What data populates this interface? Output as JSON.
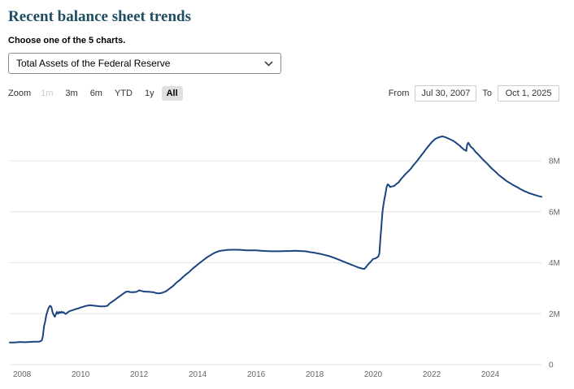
{
  "page": {
    "title": "Recent balance sheet trends",
    "subtitle": "Choose one of the 5 charts."
  },
  "colors": {
    "title": "#1f4e63",
    "line": "#1a4480",
    "grid": "#e6e6e6",
    "selected_button_bg": "#e0e0e0"
  },
  "chart_select": {
    "selected_option": "Total Assets of the Federal Reserve"
  },
  "toolbar": {
    "zoom_label": "Zoom",
    "buttons": [
      {
        "label": "1m",
        "state": "disabled"
      },
      {
        "label": "3m",
        "state": "normal"
      },
      {
        "label": "6m",
        "state": "normal"
      },
      {
        "label": "YTD",
        "state": "normal"
      },
      {
        "label": "1y",
        "state": "normal"
      },
      {
        "label": "All",
        "state": "selected"
      }
    ],
    "from_label": "From",
    "from_value": "Jul 30, 2007",
    "to_label": "To",
    "to_value": "Oct 1, 2025"
  },
  "chart_data": {
    "type": "line",
    "title": "",
    "legend": "none",
    "grid": "horizontal",
    "xlim": [
      2007.58,
      2025.75
    ],
    "ylim": [
      0,
      9.5
    ],
    "xticks": {
      "values": [
        2008,
        2010,
        2012,
        2014,
        2016,
        2018,
        2020,
        2022,
        2024
      ],
      "labels": [
        "2008",
        "2010",
        "2012",
        "2014",
        "2016",
        "2018",
        "2020",
        "2022",
        "2024"
      ]
    },
    "yticks": {
      "values": [
        0,
        2,
        4,
        6,
        8
      ],
      "labels": [
        "0",
        "2M",
        "4M",
        "6M",
        "8M"
      ]
    },
    "series": [
      {
        "name": "Total Assets of the Federal Reserve",
        "color": "#1a4480",
        "points": [
          [
            2007.58,
            0.87
          ],
          [
            2007.75,
            0.87
          ],
          [
            2007.92,
            0.89
          ],
          [
            2008.08,
            0.88
          ],
          [
            2008.25,
            0.89
          ],
          [
            2008.42,
            0.9
          ],
          [
            2008.58,
            0.9
          ],
          [
            2008.67,
            0.94
          ],
          [
            2008.71,
            1.1
          ],
          [
            2008.73,
            1.3
          ],
          [
            2008.75,
            1.5
          ],
          [
            2008.79,
            1.7
          ],
          [
            2008.83,
            1.95
          ],
          [
            2008.88,
            2.14
          ],
          [
            2008.92,
            2.25
          ],
          [
            2008.96,
            2.31
          ],
          [
            2009.0,
            2.27
          ],
          [
            2009.02,
            2.18
          ],
          [
            2009.04,
            2.06
          ],
          [
            2009.08,
            1.95
          ],
          [
            2009.12,
            1.88
          ],
          [
            2009.15,
            1.96
          ],
          [
            2009.19,
            2.07
          ],
          [
            2009.23,
            2.0
          ],
          [
            2009.27,
            2.07
          ],
          [
            2009.31,
            2.03
          ],
          [
            2009.35,
            2.08
          ],
          [
            2009.38,
            2.04
          ],
          [
            2009.42,
            2.06
          ],
          [
            2009.46,
            2.01
          ],
          [
            2009.5,
            1.99
          ],
          [
            2009.54,
            2.03
          ],
          [
            2009.58,
            2.07
          ],
          [
            2009.65,
            2.11
          ],
          [
            2009.73,
            2.14
          ],
          [
            2009.81,
            2.17
          ],
          [
            2009.9,
            2.2
          ],
          [
            2010.0,
            2.24
          ],
          [
            2010.08,
            2.27
          ],
          [
            2010.17,
            2.3
          ],
          [
            2010.25,
            2.32
          ],
          [
            2010.33,
            2.33
          ],
          [
            2010.42,
            2.32
          ],
          [
            2010.5,
            2.31
          ],
          [
            2010.58,
            2.3
          ],
          [
            2010.67,
            2.29
          ],
          [
            2010.75,
            2.29
          ],
          [
            2010.83,
            2.29
          ],
          [
            2010.92,
            2.31
          ],
          [
            2011.0,
            2.41
          ],
          [
            2011.08,
            2.47
          ],
          [
            2011.17,
            2.54
          ],
          [
            2011.25,
            2.61
          ],
          [
            2011.33,
            2.68
          ],
          [
            2011.42,
            2.75
          ],
          [
            2011.5,
            2.82
          ],
          [
            2011.56,
            2.86
          ],
          [
            2011.62,
            2.87
          ],
          [
            2011.69,
            2.85
          ],
          [
            2011.77,
            2.84
          ],
          [
            2011.85,
            2.85
          ],
          [
            2011.92,
            2.86
          ],
          [
            2012.0,
            2.92
          ],
          [
            2012.08,
            2.89
          ],
          [
            2012.17,
            2.87
          ],
          [
            2012.25,
            2.86
          ],
          [
            2012.33,
            2.86
          ],
          [
            2012.42,
            2.85
          ],
          [
            2012.5,
            2.84
          ],
          [
            2012.58,
            2.81
          ],
          [
            2012.67,
            2.8
          ],
          [
            2012.75,
            2.81
          ],
          [
            2012.83,
            2.84
          ],
          [
            2012.92,
            2.88
          ],
          [
            2013.0,
            2.95
          ],
          [
            2013.08,
            3.02
          ],
          [
            2013.17,
            3.1
          ],
          [
            2013.25,
            3.19
          ],
          [
            2013.33,
            3.27
          ],
          [
            2013.42,
            3.35
          ],
          [
            2013.5,
            3.44
          ],
          [
            2013.58,
            3.52
          ],
          [
            2013.67,
            3.6
          ],
          [
            2013.75,
            3.68
          ],
          [
            2013.83,
            3.77
          ],
          [
            2013.92,
            3.85
          ],
          [
            2014.0,
            3.93
          ],
          [
            2014.08,
            4.0
          ],
          [
            2014.17,
            4.08
          ],
          [
            2014.25,
            4.15
          ],
          [
            2014.33,
            4.22
          ],
          [
            2014.42,
            4.28
          ],
          [
            2014.5,
            4.34
          ],
          [
            2014.58,
            4.39
          ],
          [
            2014.67,
            4.43
          ],
          [
            2014.75,
            4.46
          ],
          [
            2014.83,
            4.48
          ],
          [
            2014.92,
            4.49
          ],
          [
            2015.0,
            4.5
          ],
          [
            2015.17,
            4.51
          ],
          [
            2015.33,
            4.51
          ],
          [
            2015.5,
            4.5
          ],
          [
            2015.67,
            4.49
          ],
          [
            2015.83,
            4.49
          ],
          [
            2016.0,
            4.49
          ],
          [
            2016.17,
            4.47
          ],
          [
            2016.33,
            4.46
          ],
          [
            2016.5,
            4.45
          ],
          [
            2016.67,
            4.45
          ],
          [
            2016.83,
            4.45
          ],
          [
            2017.0,
            4.46
          ],
          [
            2017.17,
            4.46
          ],
          [
            2017.33,
            4.47
          ],
          [
            2017.5,
            4.46
          ],
          [
            2017.67,
            4.45
          ],
          [
            2017.83,
            4.42
          ],
          [
            2018.0,
            4.39
          ],
          [
            2018.17,
            4.35
          ],
          [
            2018.33,
            4.31
          ],
          [
            2018.5,
            4.26
          ],
          [
            2018.67,
            4.19
          ],
          [
            2018.83,
            4.12
          ],
          [
            2019.0,
            4.04
          ],
          [
            2019.17,
            3.96
          ],
          [
            2019.33,
            3.89
          ],
          [
            2019.5,
            3.81
          ],
          [
            2019.62,
            3.77
          ],
          [
            2019.7,
            3.76
          ],
          [
            2019.75,
            3.82
          ],
          [
            2019.83,
            3.94
          ],
          [
            2019.92,
            4.05
          ],
          [
            2020.0,
            4.15
          ],
          [
            2020.08,
            4.17
          ],
          [
            2020.17,
            4.24
          ],
          [
            2020.21,
            4.36
          ],
          [
            2020.23,
            4.67
          ],
          [
            2020.25,
            5.0
          ],
          [
            2020.27,
            5.3
          ],
          [
            2020.29,
            5.6
          ],
          [
            2020.31,
            5.9
          ],
          [
            2020.33,
            6.12
          ],
          [
            2020.37,
            6.42
          ],
          [
            2020.42,
            6.72
          ],
          [
            2020.46,
            6.98
          ],
          [
            2020.5,
            7.08
          ],
          [
            2020.54,
            7.04
          ],
          [
            2020.58,
            6.97
          ],
          [
            2020.62,
            6.99
          ],
          [
            2020.71,
            7.01
          ],
          [
            2020.79,
            7.09
          ],
          [
            2020.87,
            7.16
          ],
          [
            2020.96,
            7.3
          ],
          [
            2021.04,
            7.4
          ],
          [
            2021.12,
            7.5
          ],
          [
            2021.21,
            7.6
          ],
          [
            2021.29,
            7.7
          ],
          [
            2021.37,
            7.82
          ],
          [
            2021.46,
            7.94
          ],
          [
            2021.54,
            8.06
          ],
          [
            2021.62,
            8.18
          ],
          [
            2021.71,
            8.31
          ],
          [
            2021.79,
            8.44
          ],
          [
            2021.87,
            8.55
          ],
          [
            2021.96,
            8.68
          ],
          [
            2022.04,
            8.78
          ],
          [
            2022.12,
            8.86
          ],
          [
            2022.21,
            8.91
          ],
          [
            2022.29,
            8.94
          ],
          [
            2022.37,
            8.96
          ],
          [
            2022.46,
            8.93
          ],
          [
            2022.54,
            8.89
          ],
          [
            2022.62,
            8.85
          ],
          [
            2022.71,
            8.8
          ],
          [
            2022.79,
            8.74
          ],
          [
            2022.87,
            8.67
          ],
          [
            2022.96,
            8.59
          ],
          [
            2023.04,
            8.5
          ],
          [
            2023.12,
            8.43
          ],
          [
            2023.18,
            8.39
          ],
          [
            2023.21,
            8.64
          ],
          [
            2023.25,
            8.71
          ],
          [
            2023.29,
            8.63
          ],
          [
            2023.33,
            8.56
          ],
          [
            2023.42,
            8.47
          ],
          [
            2023.5,
            8.35
          ],
          [
            2023.58,
            8.26
          ],
          [
            2023.67,
            8.15
          ],
          [
            2023.75,
            8.05
          ],
          [
            2023.83,
            7.96
          ],
          [
            2023.92,
            7.86
          ],
          [
            2024.0,
            7.76
          ],
          [
            2024.08,
            7.67
          ],
          [
            2024.17,
            7.58
          ],
          [
            2024.25,
            7.49
          ],
          [
            2024.33,
            7.41
          ],
          [
            2024.42,
            7.33
          ],
          [
            2024.5,
            7.26
          ],
          [
            2024.58,
            7.19
          ],
          [
            2024.67,
            7.13
          ],
          [
            2024.75,
            7.07
          ],
          [
            2024.83,
            7.02
          ],
          [
            2024.92,
            6.97
          ],
          [
            2025.0,
            6.91
          ],
          [
            2025.08,
            6.86
          ],
          [
            2025.17,
            6.81
          ],
          [
            2025.25,
            6.77
          ],
          [
            2025.33,
            6.73
          ],
          [
            2025.42,
            6.7
          ],
          [
            2025.5,
            6.67
          ],
          [
            2025.58,
            6.64
          ],
          [
            2025.67,
            6.61
          ],
          [
            2025.75,
            6.59
          ]
        ]
      }
    ]
  }
}
